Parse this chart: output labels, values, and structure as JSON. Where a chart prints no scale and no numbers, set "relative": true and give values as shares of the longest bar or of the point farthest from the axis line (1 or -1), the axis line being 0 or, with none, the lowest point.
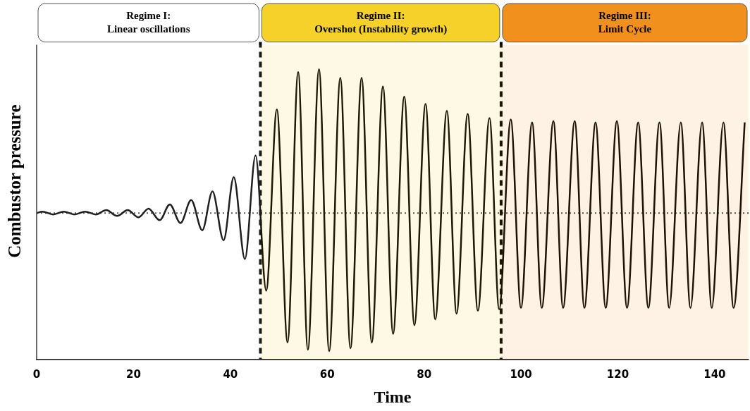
{
  "chart_data": {
    "type": "line",
    "relative": true,
    "xlabel": "Time",
    "ylabel": "Combustor pressure",
    "xlim": [
      0,
      147
    ],
    "xticks": [
      0,
      20,
      40,
      60,
      80,
      100,
      120,
      140
    ],
    "grid": false,
    "legend": false,
    "marker": "none",
    "line_style": "solid",
    "series": [
      {
        "color": "#000000",
        "x": [
          0,
          1.2,
          3.4,
          5.6,
          7.8,
          10.0,
          12.2,
          14.4,
          16.6,
          18.8,
          21.0,
          23.1,
          25.4,
          27.5,
          29.7,
          31.9,
          34.2,
          36.3,
          38.6,
          40.7,
          43.0,
          45.2,
          47.4,
          49.6,
          51.8,
          54.0,
          56.0,
          58.3,
          60.4,
          62.7,
          64.8,
          67.1,
          69.2,
          71.5,
          73.6,
          75.9,
          78.0,
          80.3,
          82.3,
          84.7,
          86.7,
          89.0,
          91.1,
          93.5,
          95.5,
          97.9,
          100.0,
          102.3,
          104.3,
          106.7,
          108.7,
          111.1,
          113.1,
          115.4,
          117.5,
          119.8,
          121.9,
          124.2,
          126.3,
          128.6,
          130.6,
          133.0,
          135.0,
          137.4,
          139.4,
          141.8,
          143.9,
          146.2
        ],
        "values": [
          0,
          0.01,
          -0.01,
          0.01,
          -0.01,
          0.01,
          -0.01,
          0.02,
          -0.02,
          0.02,
          -0.03,
          0.03,
          -0.05,
          0.06,
          -0.07,
          0.09,
          -0.12,
          0.15,
          -0.19,
          0.25,
          -0.32,
          0.4,
          -0.54,
          0.72,
          -0.9,
          0.98,
          -0.95,
          1,
          -0.96,
          0.94,
          -0.94,
          0.94,
          -0.9,
          0.88,
          -0.84,
          0.81,
          -0.78,
          0.76,
          -0.74,
          0.71,
          -0.7,
          0.69,
          -0.68,
          0.66,
          -0.67,
          0.65,
          -0.66,
          0.63,
          -0.66,
          0.64,
          -0.66,
          0.64,
          -0.66,
          0.63,
          -0.66,
          0.64,
          -0.66,
          0.63,
          -0.66,
          0.63,
          -0.66,
          0.63,
          -0.66,
          0.63,
          -0.66,
          0.63,
          -0.66,
          0.63
        ]
      }
    ],
    "ref_lines": [
      {
        "axis": "y",
        "value": 0,
        "color": "#444444",
        "line_style": "dotted"
      },
      {
        "axis": "x",
        "value": 46.2,
        "color": "#000000",
        "line_style": "dashed"
      },
      {
        "axis": "x",
        "value": 95.9,
        "color": "#000000",
        "line_style": "dashed"
      }
    ],
    "bands": [
      {
        "axis": "x",
        "from": 0,
        "to": 46.2,
        "label": "Regime I:\nLinear oscillations",
        "color": "#ffffff"
      },
      {
        "axis": "x",
        "from": 46.2,
        "to": 95.9,
        "label": "Regime II:\nOvershot (Instability growth)",
        "color": "#f5d12a"
      },
      {
        "axis": "x",
        "from": 95.9,
        "to": 147,
        "label": "Regime III:\nLimit Cycle",
        "color": "#f2901e"
      }
    ]
  }
}
